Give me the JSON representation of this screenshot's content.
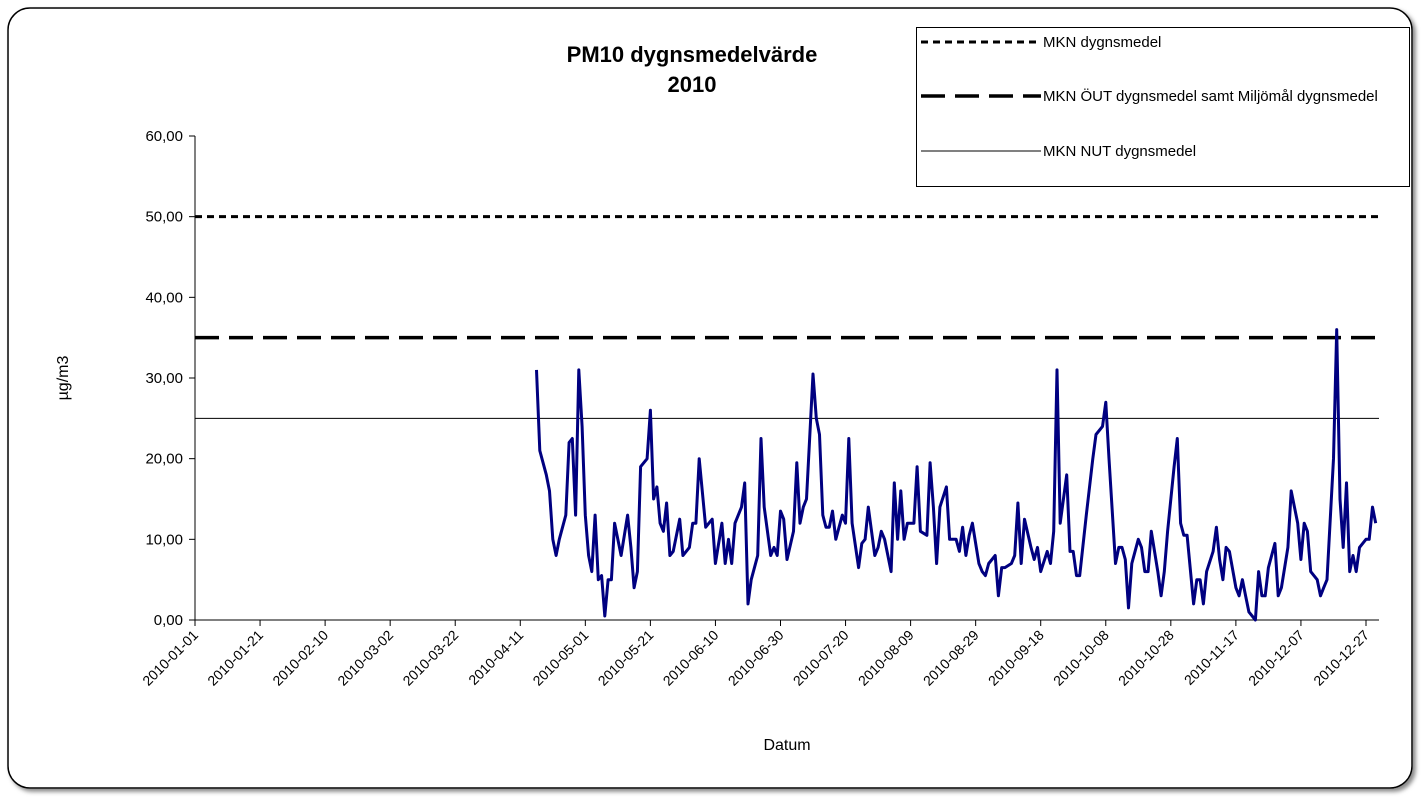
{
  "chart_data": {
    "type": "line",
    "title": "PM10 dygnsmedelvärde",
    "subtitle": "2010",
    "x_label": "Datum",
    "y_label": "µg/m3",
    "xlim": [
      "2010-01-01",
      "2010-12-31"
    ],
    "xticks": [
      "2010-01-01",
      "2010-01-21",
      "2010-02-10",
      "2010-03-02",
      "2010-03-22",
      "2010-04-11",
      "2010-05-01",
      "2010-05-21",
      "2010-06-10",
      "2010-06-30",
      "2010-07-20",
      "2010-08-09",
      "2010-08-29",
      "2010-09-18",
      "2010-10-08",
      "2010-10-28",
      "2010-11-17",
      "2010-12-07",
      "2010-12-27"
    ],
    "ylim": [
      0,
      60
    ],
    "yticks": [
      {
        "value": 0,
        "label": "0,00"
      },
      {
        "value": 10,
        "label": "10,00"
      },
      {
        "value": 20,
        "label": "20,00"
      },
      {
        "value": 30,
        "label": "30,00"
      },
      {
        "value": 40,
        "label": "40,00"
      },
      {
        "value": 50,
        "label": "50,00"
      },
      {
        "value": 60,
        "label": "60,00"
      }
    ],
    "reference_lines": [
      {
        "name": "MKN dygnsmedel",
        "value": 50,
        "style": "dashed",
        "color": "#000000"
      },
      {
        "name": "MKN ÖUT dygnsmedel samt Miljömål dygnsmedel",
        "value": 35,
        "style": "long-dashed",
        "color": "#000000"
      },
      {
        "name": "MKN NUT dygnsmedel",
        "value": 25,
        "style": "solid",
        "color": "#000000"
      }
    ],
    "series": [
      {
        "color": "#000080",
        "x": [
          "2010-04-16",
          "2010-04-17",
          "2010-04-19",
          "2010-04-20",
          "2010-04-21",
          "2010-04-22",
          "2010-04-23",
          "2010-04-25",
          "2010-04-26",
          "2010-04-27",
          "2010-04-28",
          "2010-04-29",
          "2010-04-30",
          "2010-05-01",
          "2010-05-02",
          "2010-05-03",
          "2010-05-04",
          "2010-05-05",
          "2010-05-06",
          "2010-05-07",
          "2010-05-08",
          "2010-05-09",
          "2010-05-10",
          "2010-05-12",
          "2010-05-14",
          "2010-05-15",
          "2010-05-16",
          "2010-05-17",
          "2010-05-18",
          "2010-05-20",
          "2010-05-21",
          "2010-05-22",
          "2010-05-23",
          "2010-05-24",
          "2010-05-25",
          "2010-05-26",
          "2010-05-27",
          "2010-05-28",
          "2010-05-30",
          "2010-05-31",
          "2010-06-02",
          "2010-06-03",
          "2010-06-04",
          "2010-06-05",
          "2010-06-07",
          "2010-06-08",
          "2010-06-09",
          "2010-06-10",
          "2010-06-12",
          "2010-06-13",
          "2010-06-14",
          "2010-06-15",
          "2010-06-16",
          "2010-06-18",
          "2010-06-19",
          "2010-06-20",
          "2010-06-21",
          "2010-06-23",
          "2010-06-24",
          "2010-06-25",
          "2010-06-27",
          "2010-06-28",
          "2010-06-29",
          "2010-06-30",
          "2010-07-01",
          "2010-07-02",
          "2010-07-04",
          "2010-07-05",
          "2010-07-06",
          "2010-07-07",
          "2010-07-08",
          "2010-07-10",
          "2010-07-11",
          "2010-07-12",
          "2010-07-13",
          "2010-07-14",
          "2010-07-15",
          "2010-07-16",
          "2010-07-17",
          "2010-07-19",
          "2010-07-20",
          "2010-07-21",
          "2010-07-22",
          "2010-07-24",
          "2010-07-25",
          "2010-07-26",
          "2010-07-27",
          "2010-07-29",
          "2010-07-30",
          "2010-07-31",
          "2010-08-01",
          "2010-08-03",
          "2010-08-04",
          "2010-08-05",
          "2010-08-06",
          "2010-08-07",
          "2010-08-08",
          "2010-08-10",
          "2010-08-11",
          "2010-08-12",
          "2010-08-14",
          "2010-08-15",
          "2010-08-16",
          "2010-08-17",
          "2010-08-18",
          "2010-08-20",
          "2010-08-21",
          "2010-08-23",
          "2010-08-24",
          "2010-08-25",
          "2010-08-26",
          "2010-08-27",
          "2010-08-28",
          "2010-08-30",
          "2010-08-31",
          "2010-09-01",
          "2010-09-02",
          "2010-09-04",
          "2010-09-05",
          "2010-09-06",
          "2010-09-07",
          "2010-09-09",
          "2010-09-10",
          "2010-09-11",
          "2010-09-12",
          "2010-09-13",
          "2010-09-15",
          "2010-09-16",
          "2010-09-17",
          "2010-09-18",
          "2010-09-20",
          "2010-09-21",
          "2010-09-22",
          "2010-09-23",
          "2010-09-24",
          "2010-09-26",
          "2010-09-27",
          "2010-09-28",
          "2010-09-29",
          "2010-09-30",
          "2010-10-02",
          "2010-10-04",
          "2010-10-05",
          "2010-10-07",
          "2010-10-08",
          "2010-10-09",
          "2010-10-11",
          "2010-10-12",
          "2010-10-13",
          "2010-10-14",
          "2010-10-15",
          "2010-10-16",
          "2010-10-18",
          "2010-10-19",
          "2010-10-20",
          "2010-10-21",
          "2010-10-22",
          "2010-10-24",
          "2010-10-25",
          "2010-10-26",
          "2010-10-27",
          "2010-10-29",
          "2010-10-30",
          "2010-10-31",
          "2010-11-01",
          "2010-11-02",
          "2010-11-04",
          "2010-11-05",
          "2010-11-06",
          "2010-11-07",
          "2010-11-08",
          "2010-11-10",
          "2010-11-11",
          "2010-11-12",
          "2010-11-13",
          "2010-11-14",
          "2010-11-15",
          "2010-11-17",
          "2010-11-18",
          "2010-11-19",
          "2010-11-20",
          "2010-11-21",
          "2010-11-23",
          "2010-11-24",
          "2010-11-25",
          "2010-11-26",
          "2010-11-27",
          "2010-11-29",
          "2010-11-30",
          "2010-12-01",
          "2010-12-03",
          "2010-12-04",
          "2010-12-06",
          "2010-12-07",
          "2010-12-08",
          "2010-12-09",
          "2010-12-10",
          "2010-12-12",
          "2010-12-13",
          "2010-12-14",
          "2010-12-15",
          "2010-12-17",
          "2010-12-18",
          "2010-12-19",
          "2010-12-20",
          "2010-12-21",
          "2010-12-22",
          "2010-12-23",
          "2010-12-24",
          "2010-12-25",
          "2010-12-27",
          "2010-12-28",
          "2010-12-29",
          "2010-12-30"
        ],
        "values": [
          31,
          21,
          18,
          16,
          10,
          8,
          10,
          13,
          22,
          22.5,
          13,
          31,
          24,
          13,
          8,
          6,
          13,
          5,
          5.5,
          0.5,
          5,
          5,
          12,
          8,
          13,
          9,
          4,
          6,
          19,
          20,
          26,
          15,
          16.5,
          12,
          11,
          14.5,
          8,
          8.5,
          12.5,
          8,
          9,
          12,
          12,
          20,
          11.5,
          12,
          12.5,
          7,
          12,
          7,
          10,
          7,
          12,
          14,
          17,
          2,
          5,
          8,
          22.5,
          14,
          8,
          9,
          8,
          13.5,
          12.5,
          7.5,
          11,
          19.5,
          12,
          14,
          15,
          30.5,
          25,
          23,
          13,
          11.5,
          11.5,
          13.5,
          10,
          13,
          12,
          22.5,
          12,
          6.5,
          9.5,
          10,
          14,
          8,
          9,
          11,
          10,
          6,
          17,
          10,
          16,
          10,
          12,
          12,
          19,
          11,
          10.5,
          19.5,
          14,
          7,
          14,
          16.5,
          10,
          10,
          8.5,
          11.5,
          8,
          10.5,
          12,
          7,
          6,
          5.5,
          7,
          8,
          3,
          6.5,
          6.5,
          7,
          8,
          14.5,
          7,
          12.5,
          9,
          7.5,
          9,
          6,
          8.5,
          7,
          11,
          31,
          12,
          18,
          8.5,
          8.5,
          5.5,
          5.5,
          13,
          20,
          23,
          24,
          27,
          20,
          7,
          9,
          9,
          7.5,
          1.5,
          7,
          10,
          9,
          6,
          6,
          11,
          6,
          3,
          6,
          11,
          19,
          22.5,
          12,
          10.5,
          10.5,
          2,
          5,
          5,
          2,
          6,
          8.5,
          11.5,
          7.5,
          5,
          9,
          8.5,
          4,
          3,
          5,
          3,
          1,
          0,
          6,
          3,
          3,
          6.5,
          9.5,
          3,
          4,
          9,
          16,
          12,
          7.5,
          12,
          11,
          6,
          5,
          3,
          4,
          5,
          20,
          36,
          15,
          9,
          17,
          6,
          8,
          6,
          9,
          10,
          10,
          14,
          12
        ]
      }
    ]
  }
}
